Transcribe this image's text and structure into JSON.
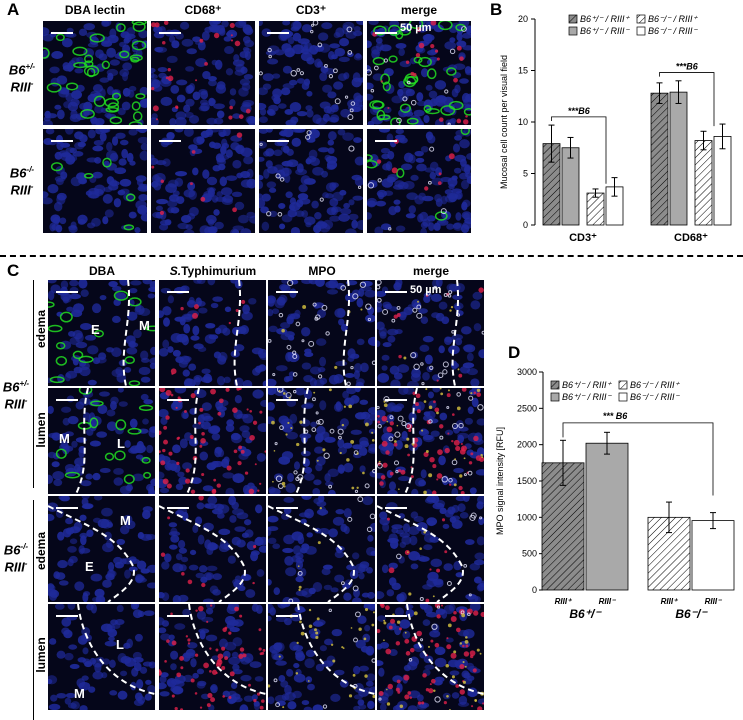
{
  "panels": {
    "A": "A",
    "B": "B",
    "C": "C",
    "D": "D"
  },
  "panelA": {
    "columns": [
      "DBA lectin",
      "CD68⁺",
      "CD3⁺",
      "merge"
    ],
    "rows": [
      {
        "label_main": "B6",
        "label_sup": "+/-",
        "label_line2": "RIII",
        "label_sup2": "-"
      },
      {
        "label_main": "B6",
        "label_sup": "-/-",
        "label_line2": "RIII",
        "label_sup2": "-"
      }
    ],
    "scale": "50 µm"
  },
  "panelC": {
    "columns_dba": "DBA",
    "columns_st_italic": "S.",
    "columns_st_rest": "Typhimurium",
    "columns_mpo": "MPO",
    "columns_merge": "merge",
    "scale": "50 µm",
    "groups": [
      {
        "label_main": "B6",
        "label_sup": "+/-",
        "label_line2": "RIII",
        "label_sup2": "-",
        "rows": [
          "edema",
          "lumen"
        ]
      },
      {
        "label_main": "B6",
        "label_sup": "-/-",
        "label_line2": "RIII",
        "label_sup2": "-",
        "rows": [
          "edema",
          "lumen"
        ]
      }
    ],
    "tile_letters": {
      "r0_E": "E",
      "r0_M": "M",
      "r1_M": "M",
      "r1_L": "L",
      "r2_M": "M",
      "r2_E": "E",
      "r3_L": "L",
      "r3_M": "M"
    }
  },
  "colors": {
    "nuclei": "#1f2a9a",
    "dba": "#22dd22",
    "cd68": "#e0204a",
    "cd3": "#e8e8ff",
    "salmonella": "#cc2222",
    "bar_gray": "#a9a9a9",
    "bar_hatch_dark": "#8c8c8c"
  },
  "chart_data": [
    {
      "type": "bar",
      "panel": "B",
      "ylabel": "Mucosal cell count per visual field",
      "ylim": [
        0,
        20
      ],
      "yticks": [
        0,
        5,
        10,
        15,
        20
      ],
      "categories": [
        "CD3⁺",
        "CD68⁺"
      ],
      "legend": [
        "B6⁺/⁻ / RIII⁺",
        "B6⁺/⁻ / RIII⁻",
        "B6⁻/⁻ / RIII⁺",
        "B6⁻/⁻ / RIII⁻"
      ],
      "series": [
        {
          "name": "B6⁺/⁻ / RIII⁺",
          "values": [
            7.9,
            12.8
          ],
          "errors": [
            1.8,
            1.0
          ]
        },
        {
          "name": "B6⁺/⁻ / RIII⁻",
          "values": [
            7.5,
            12.9
          ],
          "errors": [
            1.0,
            1.1
          ]
        },
        {
          "name": "B6⁻/⁻ / RIII⁺",
          "values": [
            3.1,
            8.2
          ],
          "errors": [
            0.4,
            0.9
          ]
        },
        {
          "name": "B6⁻/⁻ / RIII⁻",
          "values": [
            3.7,
            8.6
          ],
          "errors": [
            0.9,
            1.2
          ]
        }
      ],
      "annotations": [
        "***B6",
        "***B6"
      ]
    },
    {
      "type": "bar",
      "panel": "D",
      "ylabel": "MPO signal intensity [RFU]",
      "ylim": [
        0,
        3000
      ],
      "yticks": [
        0,
        500,
        1000,
        1500,
        2000,
        2500,
        3000
      ],
      "categories": [
        "RIII⁺",
        "RIII⁻",
        "RIII⁺",
        "RIII⁻"
      ],
      "groups": [
        "B6⁺/⁻",
        "B6⁻/⁻"
      ],
      "legend": [
        "B6⁺/⁻ / RIII⁺",
        "B6⁺/⁻ / RIII⁻",
        "B6⁻/⁻ / RIII⁺",
        "B6⁻/⁻ / RIII⁻"
      ],
      "values": [
        1750,
        2020,
        1000,
        955
      ],
      "errors": [
        310,
        150,
        210,
        110
      ],
      "annotation": "***  B6"
    }
  ]
}
